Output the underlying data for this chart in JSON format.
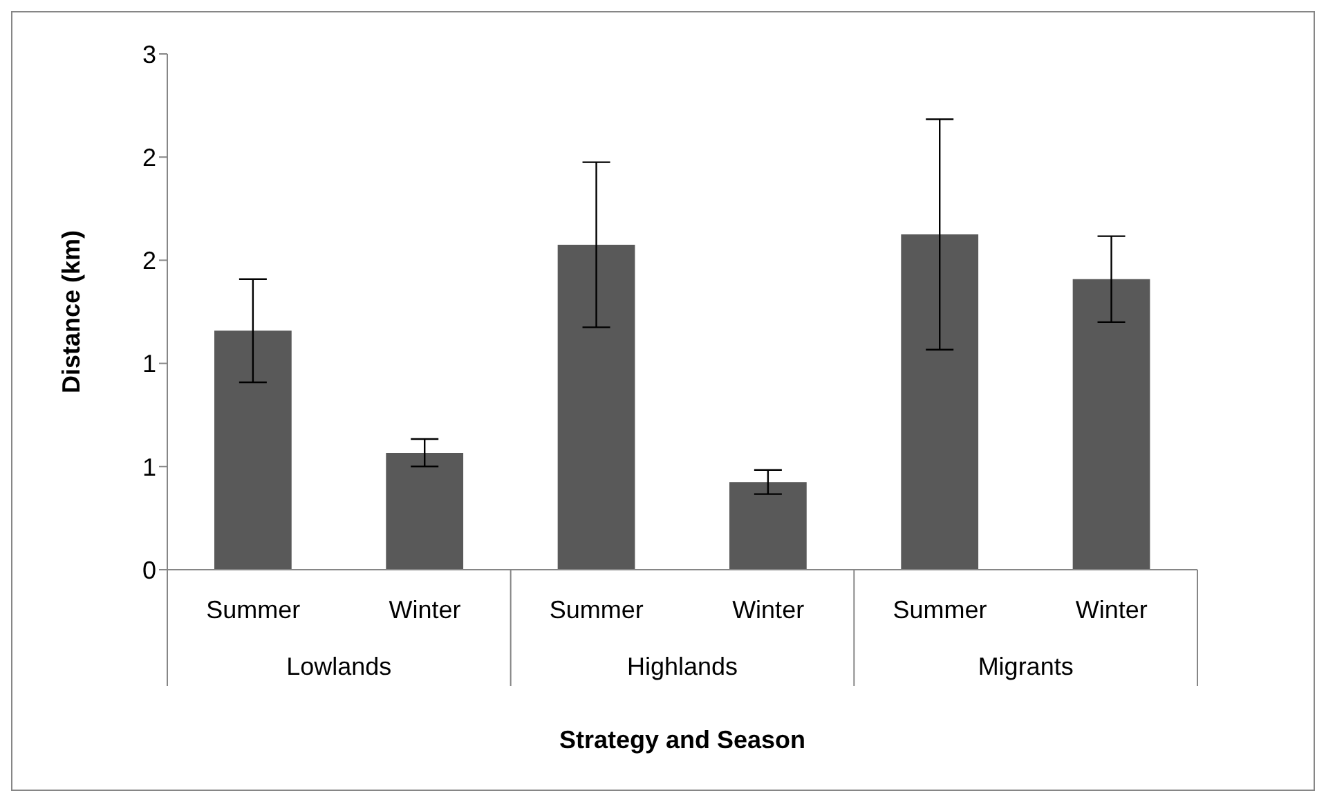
{
  "chart_data": {
    "type": "bar",
    "xlabel": "Strategy and Season",
    "ylabel": "Distance (km)",
    "categories": [
      "Summer",
      "Winter",
      "Summer",
      "Winter",
      "Summer",
      "Winter"
    ],
    "values": [
      1.39,
      0.68,
      1.89,
      0.51,
      1.95,
      1.69
    ],
    "errors": [
      0.3,
      0.08,
      0.48,
      0.07,
      0.67,
      0.25
    ],
    "color": "#595959",
    "ylim": [
      0,
      3
    ],
    "yticks": [
      0,
      {
        "value": 0.6,
        "label": "1"
      },
      {
        "value": 1.2,
        "label": "1"
      },
      {
        "value": 1.8,
        "label": "2"
      },
      {
        "value": 2.4,
        "label": "2"
      },
      3
    ],
    "annotations": [
      "Lowlands",
      "Highlands",
      "Migrants"
    ],
    "grid": false,
    "legend": false
  }
}
